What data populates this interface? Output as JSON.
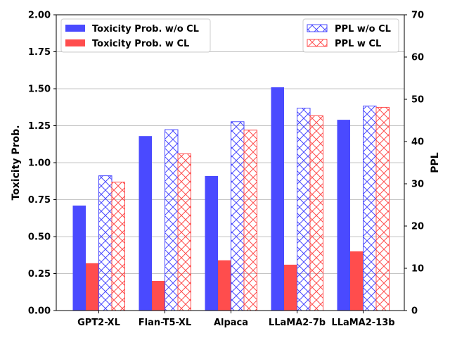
{
  "chart_data": {
    "type": "bar",
    "categories": [
      "GPT2-XL",
      "Flan-T5-XL",
      "Alpaca",
      "LLaMA2-7b",
      "LLaMA2-13b"
    ],
    "series": [
      {
        "name": "Toxicity Prob. w/o CL",
        "axis": "left",
        "style": "solid",
        "color": "#4a4aff",
        "values": [
          0.71,
          1.18,
          0.91,
          1.51,
          1.29
        ]
      },
      {
        "name": "Toxicity Prob. w CL",
        "axis": "left",
        "style": "solid",
        "color": "#ff4d4d",
        "values": [
          0.32,
          0.2,
          0.34,
          0.31,
          0.4
        ]
      },
      {
        "name": "PPL w/o CL",
        "axis": "right",
        "style": "hatch",
        "color": "#4a4aff",
        "values": [
          31.9,
          42.8,
          44.7,
          47.9,
          48.4
        ]
      },
      {
        "name": "PPL w CL",
        "axis": "right",
        "style": "hatch",
        "color": "#ff4d4d",
        "values": [
          30.4,
          37.1,
          42.7,
          46.1,
          48.1
        ]
      }
    ],
    "ylabel": "Toxicity Prob.",
    "y2label": "PPL",
    "ylim": [
      0,
      2.0
    ],
    "y2lim": [
      0,
      70
    ],
    "yticks": [
      "0.00",
      "0.25",
      "0.50",
      "0.75",
      "1.00",
      "1.25",
      "1.50",
      "1.75",
      "2.00"
    ],
    "y2ticks": [
      "0",
      "10",
      "20",
      "30",
      "40",
      "50",
      "60",
      "70"
    ],
    "grid": "horizontal",
    "legend_left": "upper-left",
    "legend_right": "upper-right"
  }
}
